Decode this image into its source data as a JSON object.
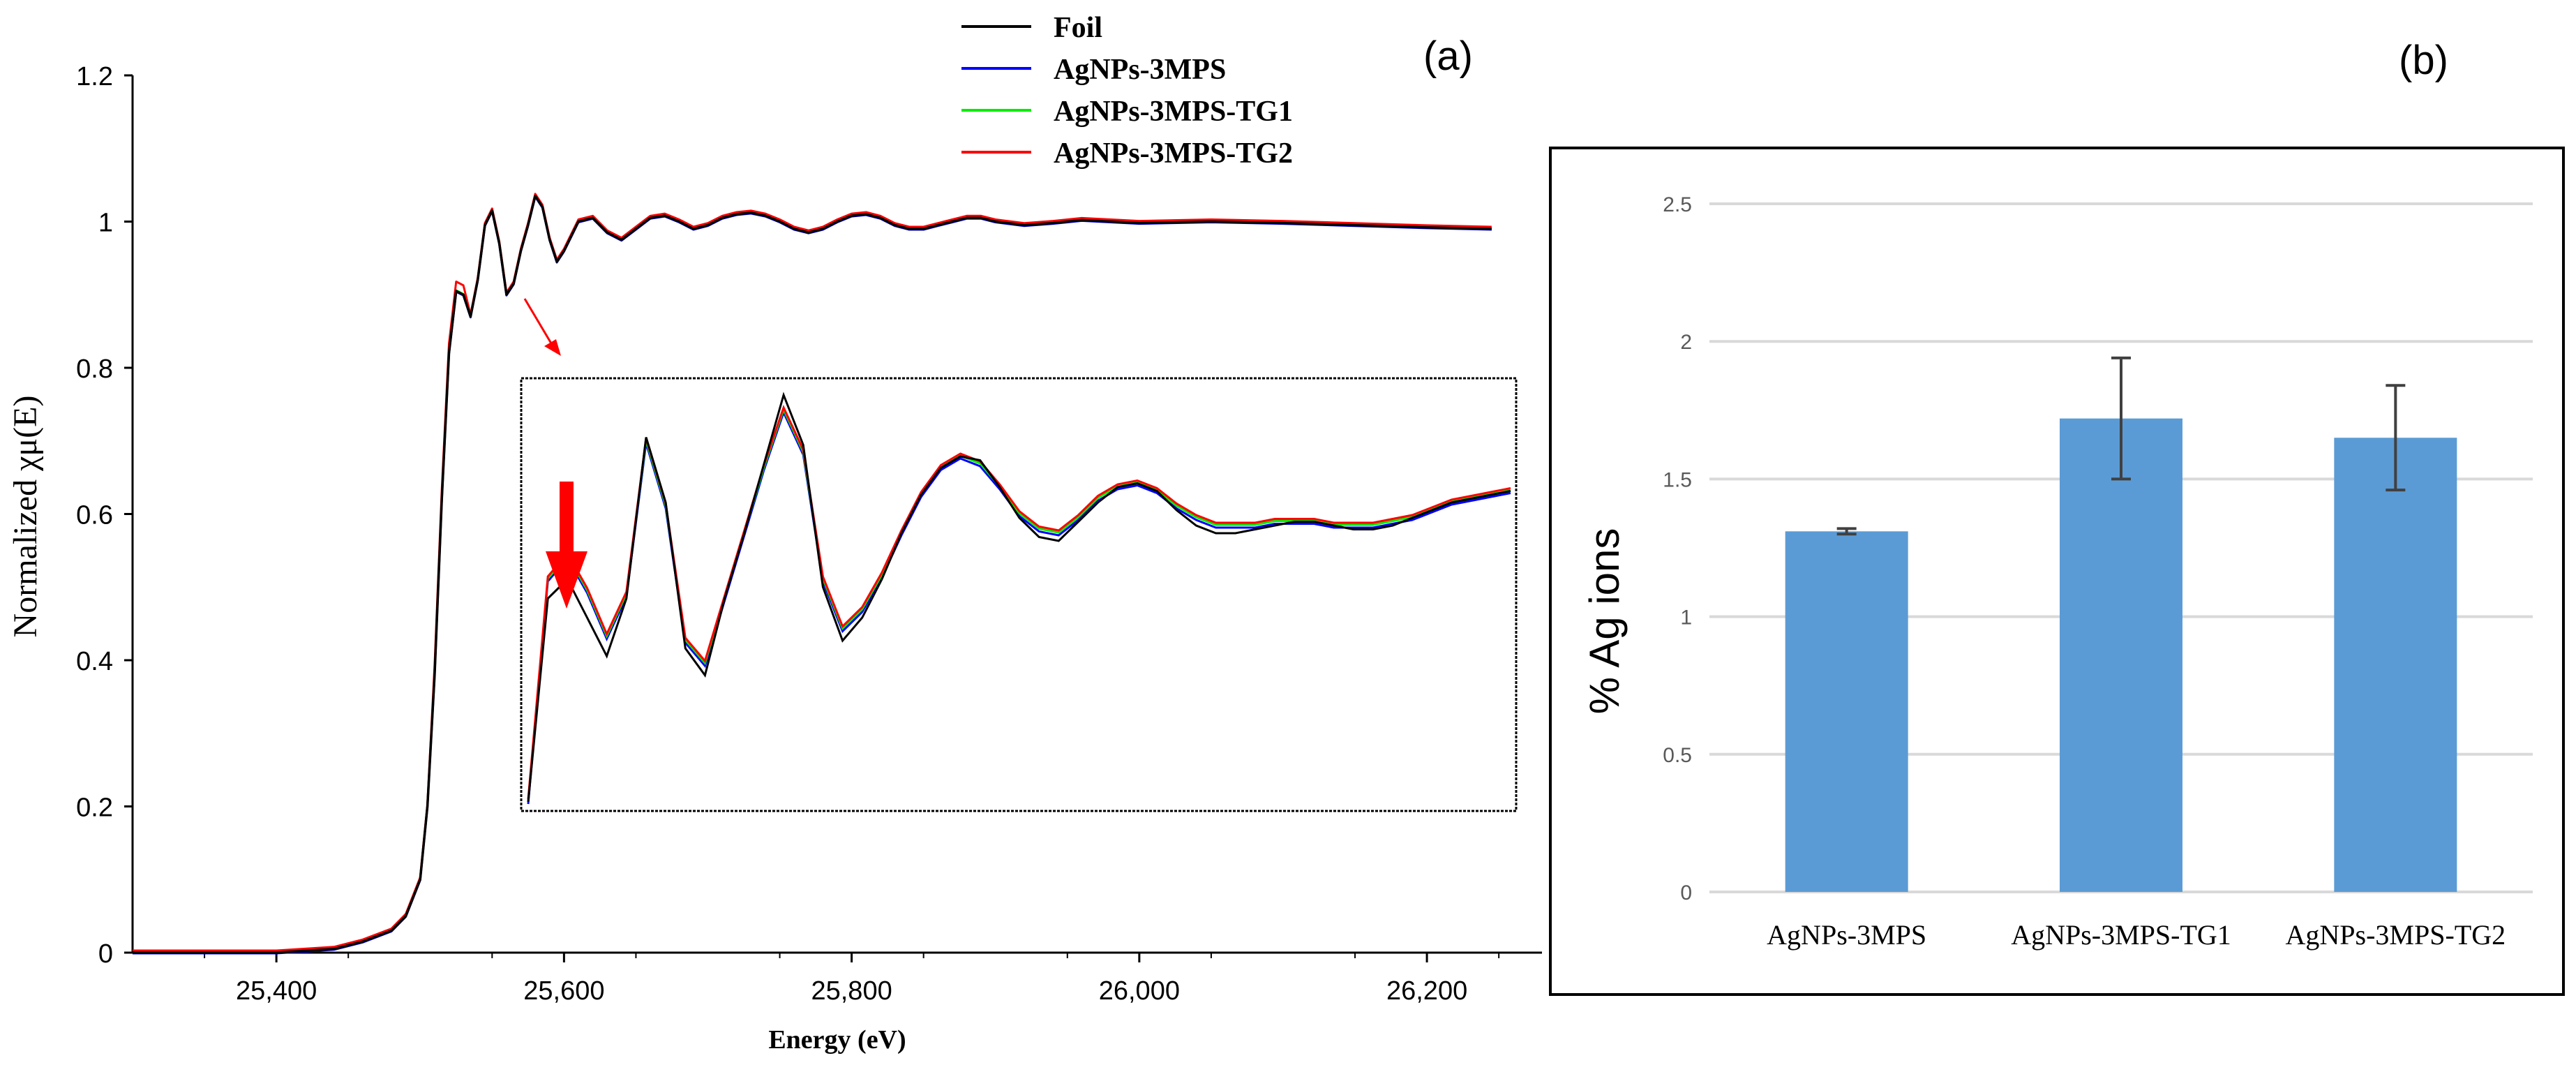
{
  "panels": {
    "a_label": "(a)",
    "b_label": "(b)"
  },
  "chart_data": [
    {
      "panel": "(a)",
      "type": "line",
      "title": "",
      "xlabel": "Energy (eV)",
      "ylabel": "Normalized χμ(E)",
      "xlim": [
        25300,
        26280
      ],
      "ylim": [
        0,
        1.2
      ],
      "xticks": [
        25400,
        25600,
        25800,
        26000,
        26200
      ],
      "xtick_labels": [
        "25,400",
        "25,600",
        "25,800",
        "26,000",
        "26,200"
      ],
      "yticks": [
        0,
        0.2,
        0.4,
        0.6,
        0.8,
        1,
        1.2
      ],
      "ytick_labels": [
        "0",
        "0.2",
        "0.4",
        "0.6",
        "0.8",
        "1",
        "1.2"
      ],
      "legend_position": "top-center",
      "series": [
        {
          "name": "Foil",
          "color": "#000000"
        },
        {
          "name": "AgNPs-3MPS",
          "color": "#0000ff"
        },
        {
          "name": "AgNPs-3MPS-TG1",
          "color": "#00ee00"
        },
        {
          "name": "AgNPs-3MPS-TG2",
          "color": "#ff0000"
        }
      ],
      "curve": {
        "x": [
          25300,
          25400,
          25440,
          25460,
          25480,
          25490,
          25500,
          25505,
          25510,
          25515,
          25520,
          25525,
          25530,
          25535,
          25540,
          25545,
          25550,
          25555,
          25560,
          25565,
          25570,
          25575,
          25580,
          25585,
          25590,
          25595,
          25600,
          25610,
          25620,
          25630,
          25640,
          25650,
          25660,
          25670,
          25680,
          25690,
          25700,
          25710,
          25720,
          25730,
          25740,
          25750,
          25760,
          25770,
          25780,
          25790,
          25800,
          25810,
          25820,
          25830,
          25840,
          25850,
          25860,
          25870,
          25880,
          25890,
          25900,
          25920,
          25940,
          25960,
          25980,
          26000,
          26050,
          26100,
          26150,
          26200,
          26245
        ],
        "y": [
          0,
          0,
          0.005,
          0.015,
          0.03,
          0.05,
          0.1,
          0.2,
          0.38,
          0.62,
          0.82,
          0.905,
          0.9,
          0.87,
          0.92,
          0.995,
          1.015,
          0.97,
          0.9,
          0.915,
          0.96,
          0.995,
          1.035,
          1.02,
          0.975,
          0.945,
          0.96,
          1.0,
          1.005,
          0.985,
          0.975,
          0.99,
          1.005,
          1.008,
          1.0,
          0.99,
          0.995,
          1.005,
          1.01,
          1.012,
          1.008,
          1.0,
          0.99,
          0.985,
          0.99,
          1.0,
          1.008,
          1.01,
          1.005,
          0.995,
          0.99,
          0.99,
          0.995,
          1.0,
          1.005,
          1.005,
          1.0,
          0.995,
          0.998,
          1.002,
          1.0,
          0.998,
          1.0,
          0.998,
          0.995,
          0.992,
          0.99
        ]
      },
      "annotations": [
        "red arrow pointing from first oscillation to inset",
        "inset zoom of oscillations with red down arrow at first peak"
      ],
      "inset": {
        "x": [
          0,
          1,
          2,
          3,
          4,
          5,
          6,
          7,
          8,
          9,
          10,
          11,
          12,
          13,
          14,
          15,
          16,
          17,
          18,
          19,
          20,
          21,
          22,
          23,
          24,
          25,
          26,
          27,
          28,
          29,
          30,
          31,
          32,
          33,
          34,
          35,
          36,
          37,
          38,
          39,
          40,
          41,
          42,
          43,
          44,
          45,
          46,
          47,
          48,
          49,
          50
        ],
        "foil": [
          0.02,
          0.55,
          0.6,
          0.5,
          0.4,
          0.55,
          0.97,
          0.8,
          0.42,
          0.35,
          0.55,
          0.72,
          0.9,
          1.08,
          0.95,
          0.58,
          0.44,
          0.5,
          0.6,
          0.72,
          0.82,
          0.89,
          0.92,
          0.91,
          0.84,
          0.76,
          0.71,
          0.7,
          0.75,
          0.8,
          0.84,
          0.85,
          0.83,
          0.78,
          0.74,
          0.72,
          0.72,
          0.73,
          0.74,
          0.75,
          0.75,
          0.74,
          0.73,
          0.73,
          0.74,
          0.76,
          0.78,
          0.8,
          0.81,
          0.82,
          0.83
        ],
        "others": [
          0.02,
          0.6,
          0.66,
          0.57,
          0.45,
          0.56,
          0.96,
          0.79,
          0.44,
          0.38,
          0.55,
          0.72,
          0.89,
          1.04,
          0.93,
          0.6,
          0.47,
          0.52,
          0.61,
          0.72,
          0.82,
          0.89,
          0.92,
          0.9,
          0.84,
          0.77,
          0.73,
          0.72,
          0.76,
          0.81,
          0.84,
          0.85,
          0.83,
          0.79,
          0.76,
          0.74,
          0.74,
          0.74,
          0.75,
          0.75,
          0.75,
          0.74,
          0.74,
          0.74,
          0.75,
          0.76,
          0.78,
          0.8,
          0.81,
          0.82,
          0.83
        ]
      }
    },
    {
      "panel": "(b)",
      "type": "bar",
      "title": "",
      "xlabel": "",
      "ylabel": "% Ag ions",
      "ylim": [
        0,
        2.5
      ],
      "yticks": [
        0,
        0.5,
        1,
        1.5,
        2,
        2.5
      ],
      "ytick_labels": [
        "0",
        "0.5",
        "1",
        "1.5",
        "2",
        "2.5"
      ],
      "grid": true,
      "bar_color": "#5b9bd5",
      "categories": [
        "AgNPs-3MPS",
        "AgNPs-3MPS-TG1",
        "AgNPs-3MPS-TG2"
      ],
      "values": [
        1.31,
        1.72,
        1.65
      ],
      "errors": [
        0.01,
        0.22,
        0.19
      ]
    }
  ]
}
